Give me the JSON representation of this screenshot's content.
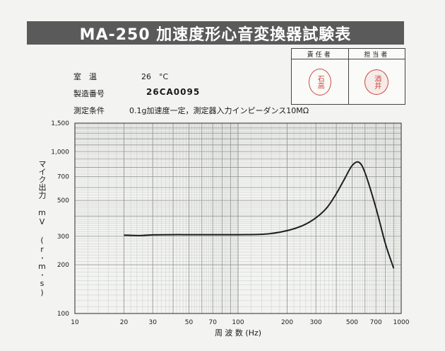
{
  "title": "MA-250 加速度形心音変換器試験表",
  "stamps": {
    "header_1": "責任者",
    "header_2": "担当者",
    "seal_1": "石高",
    "seal_2": "酒井"
  },
  "info": {
    "temp_label": "室　温",
    "temp_value": "26　°C",
    "serial_label": "製造番号",
    "serial_value": "26CA0095",
    "cond_label": "測定条件",
    "cond_value": "0.1g加速度一定，測定器入力インピーダンス10MΩ"
  },
  "chart_data": {
    "type": "line",
    "x_scale": "log",
    "y_scale": "log",
    "xlim": [
      10,
      1000
    ],
    "ylim": [
      100,
      1500
    ],
    "xlabel": "周 波 数 (Hz)",
    "ylabel": "マイク出力 mV (r･m･s)",
    "x_ticks": [
      {
        "value": 10,
        "label": "10"
      },
      {
        "value": 20,
        "label": "20"
      },
      {
        "value": 30,
        "label": "30"
      },
      {
        "value": 50,
        "label": "50"
      },
      {
        "value": 70,
        "label": "70"
      },
      {
        "value": 100,
        "label": "100"
      },
      {
        "value": 200,
        "label": "200"
      },
      {
        "value": 300,
        "label": "300"
      },
      {
        "value": 500,
        "label": "500"
      },
      {
        "value": 700,
        "label": "700"
      },
      {
        "value": 1000,
        "label": "1000"
      }
    ],
    "y_ticks": [
      {
        "value": 100,
        "label": "100"
      },
      {
        "value": 200,
        "label": "200"
      },
      {
        "value": 300,
        "label": "300"
      },
      {
        "value": 500,
        "label": "500"
      },
      {
        "value": 700,
        "label": "700"
      },
      {
        "value": 1000,
        "label": "1,000"
      },
      {
        "value": 1500,
        "label": "1,500"
      }
    ],
    "grid": true,
    "series": [
      {
        "x": [
          20,
          25,
          30,
          40,
          50,
          70,
          100,
          150,
          200,
          250,
          300,
          350,
          400,
          450,
          500,
          550,
          600,
          700,
          800,
          900
        ],
        "y": [
          305,
          303,
          306,
          307,
          307,
          307,
          307,
          310,
          325,
          350,
          390,
          450,
          550,
          680,
          820,
          860,
          740,
          450,
          270,
          190
        ]
      }
    ]
  }
}
